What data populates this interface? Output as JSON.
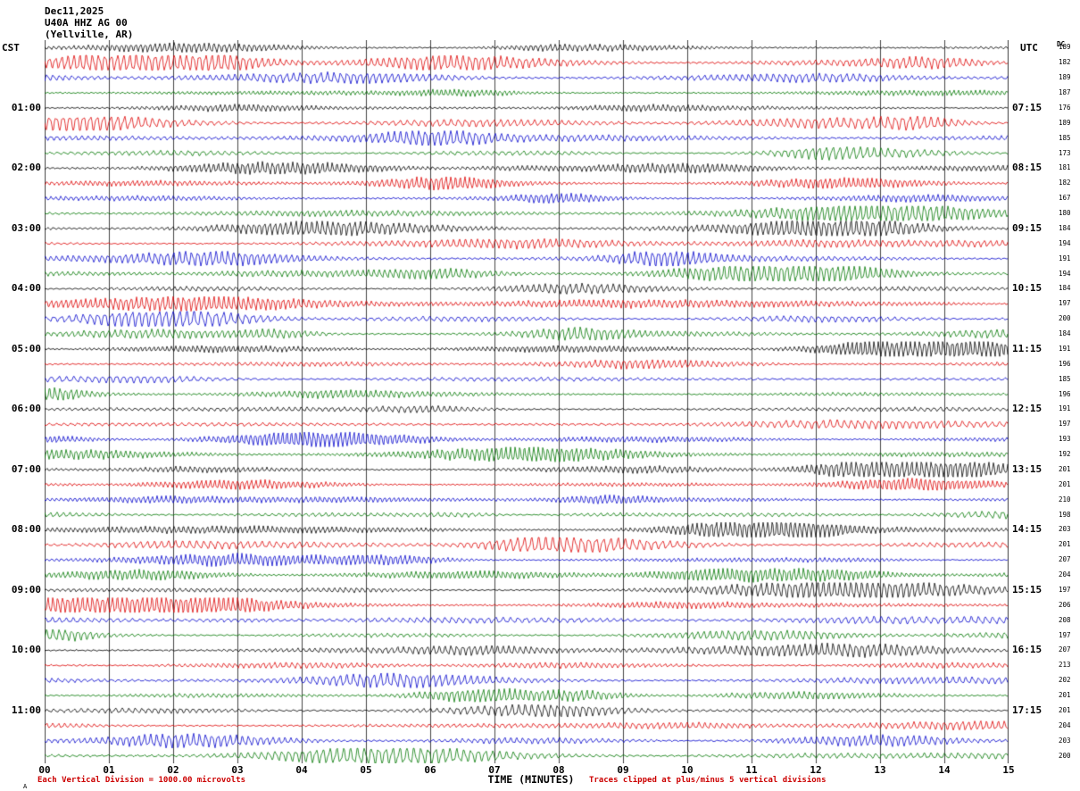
{
  "header": {
    "date": "Dec11,2025",
    "station": "U40A HHZ AG 00",
    "location": "(Yellville, AR)",
    "left_tz_label": "CST",
    "right_tz_label": "UTC",
    "dc_column_label": "DC"
  },
  "footer": {
    "scale_note": "Each Vertical Division = 1000.00 microvolts",
    "axis_label": "TIME (MINUTES)",
    "clip_note": "Traces clipped at plus/minus 5 vertical divisions",
    "corner_mark": "A"
  },
  "chart_data": {
    "type": "line",
    "subtype": "helicorder-seismogram",
    "title": "U40A HHZ AG 00 (Yellville, AR) Dec11,2025",
    "xlabel": "TIME (MINUTES)",
    "x_ticks": [
      "00",
      "01",
      "02",
      "03",
      "04",
      "05",
      "06",
      "07",
      "08",
      "09",
      "10",
      "11",
      "12",
      "13",
      "14",
      "15"
    ],
    "x_range_minutes": [
      0,
      15
    ],
    "rows": 48,
    "minutes_per_row": 15,
    "traces_per_hour": 4,
    "trace_color_cycle": [
      "#000000",
      "#dd0000",
      "#0000cc",
      "#007700"
    ],
    "grid": "vertical-minute-lines",
    "left_time_labels": [
      {
        "row": 4,
        "label": "01:00"
      },
      {
        "row": 8,
        "label": "02:00"
      },
      {
        "row": 12,
        "label": "03:00"
      },
      {
        "row": 16,
        "label": "04:00"
      },
      {
        "row": 20,
        "label": "05:00"
      },
      {
        "row": 24,
        "label": "06:00"
      },
      {
        "row": 28,
        "label": "07:00"
      },
      {
        "row": 32,
        "label": "08:00"
      },
      {
        "row": 36,
        "label": "09:00"
      },
      {
        "row": 40,
        "label": "10:00"
      },
      {
        "row": 44,
        "label": "11:00"
      }
    ],
    "right_time_labels": [
      {
        "row": 4,
        "label": "07:15"
      },
      {
        "row": 8,
        "label": "08:15"
      },
      {
        "row": 12,
        "label": "09:15"
      },
      {
        "row": 16,
        "label": "10:15"
      },
      {
        "row": 20,
        "label": "11:15"
      },
      {
        "row": 24,
        "label": "12:15"
      },
      {
        "row": 28,
        "label": "13:15"
      },
      {
        "row": 32,
        "label": "14:15"
      },
      {
        "row": 36,
        "label": "15:15"
      },
      {
        "row": 40,
        "label": "16:15"
      },
      {
        "row": 44,
        "label": "17:15"
      }
    ],
    "dc_values": [
      189,
      182,
      189,
      187,
      176,
      189,
      185,
      173,
      181,
      182,
      167,
      180,
      184,
      194,
      191,
      194,
      184,
      197,
      200,
      184,
      191,
      196,
      185,
      196,
      191,
      197,
      193,
      192,
      201,
      201,
      210,
      198,
      203,
      201,
      207,
      204,
      197,
      206,
      208,
      197,
      207,
      213,
      202,
      201,
      201,
      204,
      203,
      200
    ]
  }
}
